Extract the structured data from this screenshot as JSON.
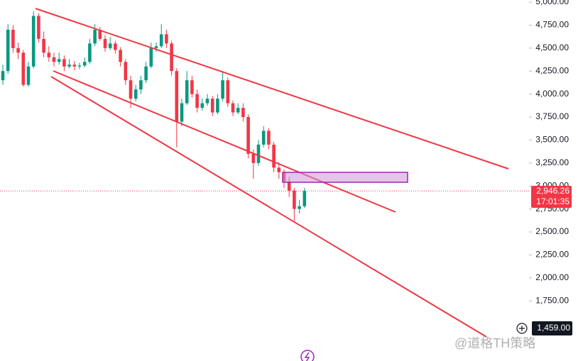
{
  "chart_data": {
    "type": "candlestick",
    "up_color": "#089981",
    "down_color": "#f23645",
    "ylim": [
      1096.3,
      5023.1
    ],
    "yticks": [
      {
        "value": 5000,
        "label": "5,000.00"
      },
      {
        "value": 4750,
        "label": "4,750.00"
      },
      {
        "value": 4500,
        "label": "4,500.00"
      },
      {
        "value": 4250,
        "label": "4,250.00"
      },
      {
        "value": 4000,
        "label": "4,000.00"
      },
      {
        "value": 3750,
        "label": "3,750.00"
      },
      {
        "value": 3500,
        "label": "3,500.00"
      },
      {
        "value": 3250,
        "label": "3,250.00"
      },
      {
        "value": 3000,
        "label": "3,000.00"
      },
      {
        "value": 2750,
        "label": "2,750.00"
      },
      {
        "value": 2500,
        "label": "2,500.00"
      },
      {
        "value": 2250,
        "label": "2,250.00"
      },
      {
        "value": 2000,
        "label": "2,000.00"
      },
      {
        "value": 1750,
        "label": "1,750.00"
      }
    ],
    "current_price": {
      "value": 2946.26,
      "label": "2,946.26",
      "countdown": "17:01:35"
    },
    "crosshair_price": {
      "value": 1459,
      "label": "1,459.00"
    },
    "watermark": "@道格TH策略",
    "ohlc": [
      [
        4150,
        4320,
        4100,
        4250
      ],
      [
        4250,
        4760,
        4220,
        4700
      ],
      [
        4700,
        4750,
        4450,
        4500
      ],
      [
        4500,
        4560,
        4380,
        4450
      ],
      [
        4450,
        4480,
        4080,
        4100
      ],
      [
        4100,
        4350,
        4080,
        4300
      ],
      [
        4300,
        4900,
        4280,
        4850
      ],
      [
        4850,
        4880,
        4560,
        4600
      ],
      [
        4600,
        4680,
        4400,
        4450
      ],
      [
        4450,
        4520,
        4350,
        4400
      ],
      [
        4400,
        4450,
        4300,
        4350
      ],
      [
        4350,
        4450,
        4320,
        4380
      ],
      [
        4380,
        4420,
        4250,
        4300
      ],
      [
        4300,
        4380,
        4280,
        4320
      ],
      [
        4320,
        4360,
        4260,
        4300
      ],
      [
        4300,
        4340,
        4270,
        4310
      ],
      [
        4310,
        4400,
        4290,
        4350
      ],
      [
        4350,
        4600,
        4330,
        4550
      ],
      [
        4550,
        4760,
        4520,
        4700
      ],
      [
        4700,
        4730,
        4580,
        4600
      ],
      [
        4600,
        4640,
        4460,
        4500
      ],
      [
        4500,
        4620,
        4480,
        4550
      ],
      [
        4550,
        4580,
        4440,
        4480
      ],
      [
        4480,
        4510,
        4300,
        4350
      ],
      [
        4350,
        4380,
        4100,
        4150
      ],
      [
        4150,
        4200,
        3850,
        3950
      ],
      [
        3950,
        4100,
        3920,
        4050
      ],
      [
        4050,
        4200,
        4000,
        4150
      ],
      [
        4150,
        4350,
        4120,
        4300
      ],
      [
        4300,
        4560,
        4280,
        4500
      ],
      [
        4500,
        4560,
        4460,
        4520
      ],
      [
        4520,
        4760,
        4500,
        4650
      ],
      [
        4650,
        4700,
        4500,
        4550
      ],
      [
        4550,
        4580,
        4200,
        4250
      ],
      [
        4250,
        4280,
        3420,
        3700
      ],
      [
        3700,
        3950,
        3650,
        3900
      ],
      [
        3900,
        4250,
        3880,
        4150
      ],
      [
        4150,
        4200,
        3960,
        4000
      ],
      [
        4000,
        4050,
        3800,
        3850
      ],
      [
        3850,
        3950,
        3820,
        3900
      ],
      [
        3900,
        4000,
        3870,
        3950
      ],
      [
        3950,
        3980,
        3760,
        3800
      ],
      [
        3800,
        4000,
        3780,
        3950
      ],
      [
        3950,
        4250,
        3920,
        4150
      ],
      [
        4150,
        4180,
        3860,
        3900
      ],
      [
        3900,
        3930,
        3760,
        3800
      ],
      [
        3800,
        3900,
        3780,
        3850
      ],
      [
        3850,
        3900,
        3700,
        3750
      ],
      [
        3750,
        3780,
        3300,
        3350
      ],
      [
        3350,
        3400,
        3080,
        3250
      ],
      [
        3250,
        3500,
        3220,
        3450
      ],
      [
        3450,
        3650,
        3420,
        3600
      ],
      [
        3600,
        3630,
        3400,
        3450
      ],
      [
        3450,
        3480,
        3150,
        3200
      ],
      [
        3200,
        3260,
        3080,
        3150
      ],
      [
        3150,
        3180,
        2980,
        3050
      ],
      [
        3050,
        3100,
        2880,
        2950
      ],
      [
        2950,
        2980,
        2620,
        2750
      ],
      [
        2750,
        2850,
        2700,
        2780
      ],
      [
        2780,
        2980,
        2760,
        2946.26
      ]
    ]
  }
}
